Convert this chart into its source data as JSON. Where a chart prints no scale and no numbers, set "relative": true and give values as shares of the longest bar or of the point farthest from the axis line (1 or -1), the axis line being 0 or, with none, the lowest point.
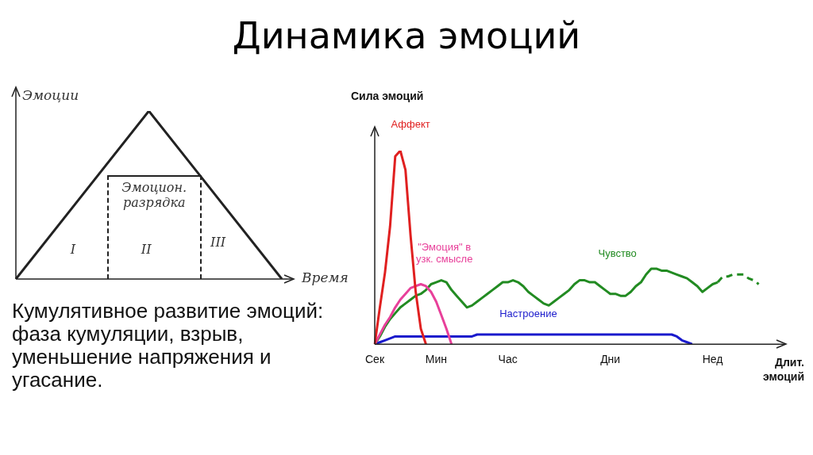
{
  "chart_data": [
    {
      "type": "line",
      "title": "Динамика эмоций",
      "ylabel": "Эмоции",
      "xlabel": "Время",
      "categories": [
        null,
        null,
        null
      ],
      "relative": true,
      "legend": false,
      "marker": "none",
      "series": [
        {
          "color": "#222222",
          "values": [
            0,
            1,
            0
          ]
        }
      ],
      "annotations": [
        "Эмоцион. разрядка",
        "I",
        "II",
        "III",
        "Кумулятивное развитие эмоций: фаза кумуляции, взрыв, уменьшение напряжения и угасание."
      ]
    },
    {
      "type": "line",
      "ylabel": "Сила эмоций",
      "xlabel": "Длит. эмоций",
      "relative": true,
      "legend": false,
      "marker": "none",
      "categories": [
        "Сек",
        null,
        null,
        null,
        null,
        null,
        null,
        null,
        null,
        null,
        null,
        null,
        "Мин",
        null,
        null,
        null,
        null,
        null,
        null,
        null,
        null,
        null,
        null,
        null,
        null,
        null,
        "Час",
        null,
        null,
        null,
        null,
        null,
        null,
        null,
        null,
        null,
        null,
        null,
        null,
        null,
        null,
        null,
        null,
        null,
        null,
        null,
        "Дни",
        null,
        null,
        null,
        null,
        null,
        null,
        null,
        null,
        null,
        null,
        null,
        null,
        null,
        null,
        null,
        null,
        null,
        null,
        null,
        "Нед",
        null,
        null,
        null,
        null,
        null,
        null,
        null,
        null,
        null,
        null,
        null,
        null
      ],
      "series": [
        {
          "name": "Аффект",
          "color": "#e02020",
          "values": [
            0,
            0.19,
            0.37,
            0.61,
            0.97,
            1,
            0.9,
            0.56,
            0.27,
            0.08,
            0,
            null,
            null,
            null,
            null,
            null,
            null,
            null,
            null,
            null,
            null,
            null,
            null,
            null,
            null,
            null,
            null,
            null,
            null,
            null,
            null,
            null,
            null,
            null,
            null,
            null,
            null,
            null,
            null,
            null,
            null,
            null,
            null,
            null,
            null,
            null,
            null,
            null,
            null,
            null,
            null,
            null,
            null,
            null,
            null,
            null,
            null,
            null,
            null,
            null,
            null,
            null,
            null,
            null,
            null,
            null,
            null,
            null,
            null,
            null,
            null,
            null,
            null,
            null,
            null,
            null,
            null,
            null,
            null
          ]
        },
        {
          "name": "\"Эмоция\" в узк. смысле",
          "color": "#e8409a",
          "values": [
            0,
            0.05,
            0.1,
            0.14,
            0.19,
            0.23,
            0.26,
            0.29,
            0.3,
            0.31,
            0.3,
            0.27,
            0.22,
            0.15,
            0.08,
            0,
            null,
            null,
            null,
            null,
            null,
            null,
            null,
            null,
            null,
            null,
            null,
            null,
            null,
            null,
            null,
            null,
            null,
            null,
            null,
            null,
            null,
            null,
            null,
            null,
            null,
            null,
            null,
            null,
            null,
            null,
            null,
            null,
            null,
            null,
            null,
            null,
            null,
            null,
            null,
            null,
            null,
            null,
            null,
            null,
            null,
            null,
            null,
            null,
            null,
            null,
            null,
            null,
            null,
            null,
            null,
            null,
            null,
            null,
            null,
            null,
            null,
            null,
            null
          ]
        },
        {
          "name": "Чувство",
          "color": "#228b22",
          "values": [
            0,
            0.04,
            0.09,
            0.13,
            0.16,
            0.19,
            0.21,
            0.23,
            0.25,
            0.26,
            0.28,
            0.31,
            0.32,
            0.33,
            0.32,
            0.28,
            0.25,
            0.22,
            0.19,
            0.2,
            0.22,
            0.24,
            0.26,
            0.28,
            0.3,
            0.32,
            0.32,
            0.33,
            0.32,
            0.3,
            0.27,
            0.25,
            0.23,
            0.21,
            0.2,
            0.22,
            0.24,
            0.26,
            0.28,
            0.31,
            0.33,
            0.33,
            0.32,
            0.32,
            0.3,
            0.28,
            0.26,
            0.26,
            0.25,
            0.25,
            0.27,
            0.3,
            0.32,
            0.36,
            0.39,
            0.39,
            0.38,
            0.38,
            0.37,
            0.36,
            0.35,
            0.34,
            0.32,
            0.3,
            0.27,
            0.29,
            0.31,
            0.32,
            null,
            null,
            null,
            null,
            null,
            null,
            null,
            null,
            null,
            null,
            null
          ]
        },
        {
          "color": "#228b22",
          "line_style": "dashed",
          "values": [
            null,
            null,
            null,
            null,
            null,
            null,
            null,
            null,
            null,
            null,
            null,
            null,
            null,
            null,
            null,
            null,
            null,
            null,
            null,
            null,
            null,
            null,
            null,
            null,
            null,
            null,
            null,
            null,
            null,
            null,
            null,
            null,
            null,
            null,
            null,
            null,
            null,
            null,
            null,
            null,
            null,
            null,
            null,
            null,
            null,
            null,
            null,
            null,
            null,
            null,
            null,
            null,
            null,
            null,
            null,
            null,
            null,
            null,
            null,
            null,
            null,
            null,
            null,
            null,
            null,
            null,
            null,
            0.32,
            0.35,
            0.35,
            0.36,
            0.36,
            0.36,
            0.34,
            0.33,
            0.31,
            null,
            null,
            null
          ]
        },
        {
          "name": "Настроение",
          "color": "#1a1acc",
          "values": [
            0,
            0.01,
            0.02,
            0.03,
            0.04,
            0.04,
            0.04,
            0.04,
            0.04,
            0.04,
            0.04,
            0.04,
            0.04,
            0.04,
            0.04,
            0.04,
            0.04,
            0.04,
            0.04,
            0.04,
            0.05,
            0.05,
            0.05,
            0.05,
            0.05,
            0.05,
            0.05,
            0.05,
            0.05,
            0.05,
            0.05,
            0.05,
            0.05,
            0.05,
            0.05,
            0.05,
            0.05,
            0.05,
            0.05,
            0.05,
            0.05,
            0.05,
            0.05,
            0.05,
            0.05,
            0.05,
            0.05,
            0.05,
            0.05,
            0.05,
            0.05,
            0.05,
            0.05,
            0.05,
            0.05,
            0.05,
            0.05,
            0.05,
            0.05,
            0.04,
            0.02,
            0.01,
            0,
            null,
            null,
            null,
            null,
            null,
            null,
            null,
            null,
            null,
            null,
            null,
            null,
            null,
            null,
            null,
            null
          ]
        }
      ]
    }
  ]
}
